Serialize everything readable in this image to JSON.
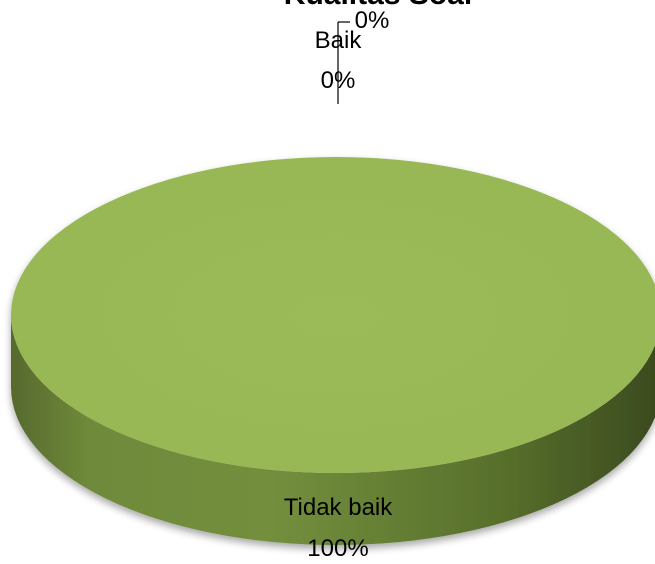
{
  "chart_data": {
    "type": "pie",
    "style": "3d",
    "title": "Kualitas Soal",
    "slices": [
      {
        "label": "Baik",
        "value": 0,
        "percent_label": "0%",
        "color": "#4f81bd"
      },
      {
        "label": "",
        "value": 0,
        "percent_label": "0%",
        "color": "#c0504d"
      },
      {
        "label": "Tidak baik",
        "value": 100,
        "percent_label": "100%",
        "color": "#9bbb59"
      }
    ],
    "legend": "none"
  }
}
